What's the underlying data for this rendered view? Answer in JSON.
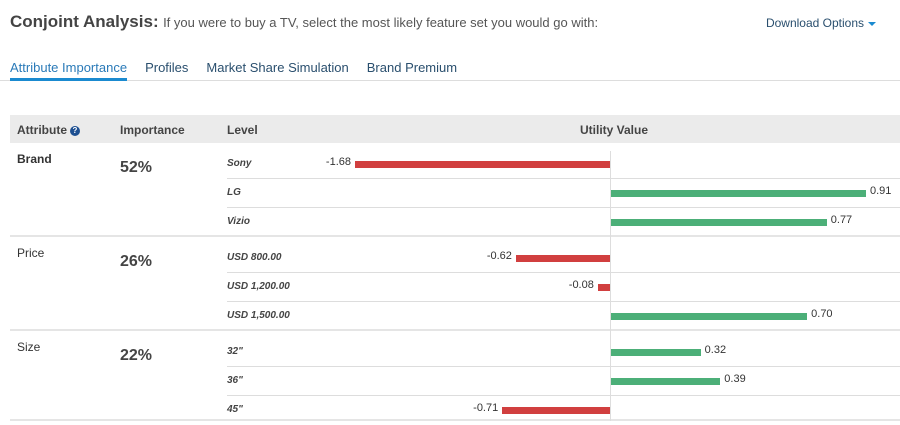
{
  "header": {
    "title": "Conjoint Analysis:",
    "subtitle": "If you were to buy a TV, select the most likely feature set you would go with:",
    "download_label": "Download Options"
  },
  "tabs": [
    {
      "label": "Attribute Importance",
      "active": true
    },
    {
      "label": "Profiles"
    },
    {
      "label": "Market Share Simulation"
    },
    {
      "label": "Brand Premium"
    }
  ],
  "table": {
    "columns": [
      "Attribute",
      "Importance",
      "Level",
      "Utility Value"
    ]
  },
  "colors": {
    "negative": "#d13f3f",
    "positive": "#4caf78",
    "accent": "#1a8ad0"
  },
  "groups": [
    {
      "attribute": "Brand",
      "bold": true,
      "importance": "52%",
      "levels": [
        {
          "name": "Sony",
          "value": -1.68,
          "label": "-1.68"
        },
        {
          "name": "LG",
          "value": 0.91,
          "label": "0.91"
        },
        {
          "name": "Vizio",
          "value": 0.77,
          "label": "0.77"
        }
      ]
    },
    {
      "attribute": "Price",
      "importance": "26%",
      "levels": [
        {
          "name": "USD 800.00",
          "value": -0.62,
          "label": "-0.62"
        },
        {
          "name": "USD 1,200.00",
          "value": -0.08,
          "label": "-0.08"
        },
        {
          "name": "USD 1,500.00",
          "value": 0.7,
          "label": "0.70"
        }
      ]
    },
    {
      "attribute": "Size",
      "importance": "22%",
      "levels": [
        {
          "name": "32\"",
          "value": 0.32,
          "label": "0.32"
        },
        {
          "name": "36\"",
          "value": 0.39,
          "label": "0.39"
        },
        {
          "name": "45\"",
          "value": -0.71,
          "label": "-0.71"
        }
      ]
    }
  ]
}
